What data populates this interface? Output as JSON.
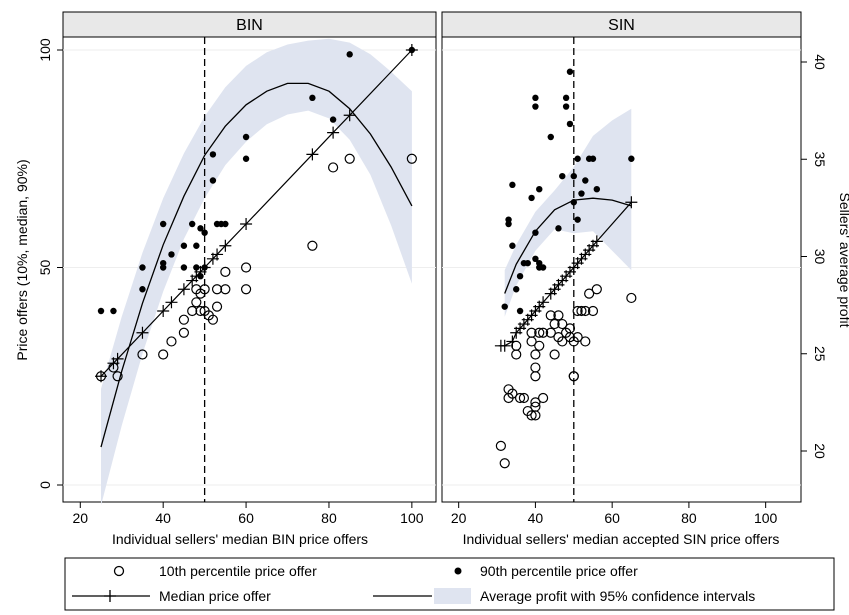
{
  "chart_data": {
    "type": "scatter",
    "left_axis_label": "Price offers (10%, median, 90%)",
    "right_axis_label": "Sellers' average profit",
    "left_ticks": [
      0,
      50,
      100
    ],
    "right_ticks": [
      20,
      25,
      30,
      35,
      40
    ],
    "panels": [
      {
        "title": "BIN",
        "xlabel": "Individual sellers' median BIN price offers",
        "xticks": [
          20,
          40,
          60,
          80,
          100
        ],
        "xlim": [
          18,
          101
        ],
        "ref_line_x": 50,
        "p10": [
          [
            25,
            25
          ],
          [
            28,
            27
          ],
          [
            29,
            25
          ],
          [
            35,
            30
          ],
          [
            40,
            30
          ],
          [
            42,
            33
          ],
          [
            45,
            35
          ],
          [
            45,
            38
          ],
          [
            47,
            40
          ],
          [
            48,
            42
          ],
          [
            48,
            45
          ],
          [
            49,
            40
          ],
          [
            49,
            44
          ],
          [
            50,
            45
          ],
          [
            50,
            40
          ],
          [
            51,
            39
          ],
          [
            52,
            38
          ],
          [
            53,
            41
          ],
          [
            53,
            45
          ],
          [
            55,
            49
          ],
          [
            55,
            45
          ],
          [
            60,
            50
          ],
          [
            60,
            45
          ],
          [
            76,
            55
          ],
          [
            81,
            73
          ],
          [
            85,
            75
          ],
          [
            100,
            75
          ]
        ],
        "p90": [
          [
            25,
            40
          ],
          [
            28,
            40
          ],
          [
            35,
            45
          ],
          [
            35,
            50
          ],
          [
            40,
            60
          ],
          [
            40,
            51
          ],
          [
            40,
            50
          ],
          [
            42,
            53
          ],
          [
            45,
            55
          ],
          [
            45,
            50
          ],
          [
            47,
            60
          ],
          [
            48,
            55
          ],
          [
            48,
            50
          ],
          [
            49,
            59
          ],
          [
            49,
            48
          ],
          [
            50,
            58
          ],
          [
            50,
            50
          ],
          [
            52,
            76
          ],
          [
            52,
            70
          ],
          [
            53,
            60
          ],
          [
            54,
            60
          ],
          [
            55,
            60
          ],
          [
            60,
            80
          ],
          [
            60,
            75
          ],
          [
            76,
            89
          ],
          [
            81,
            84
          ],
          [
            85,
            99
          ],
          [
            100,
            100
          ]
        ],
        "median": [
          [
            25,
            25
          ],
          [
            28,
            28
          ],
          [
            29,
            29
          ],
          [
            35,
            35
          ],
          [
            40,
            40
          ],
          [
            42,
            42
          ],
          [
            45,
            45
          ],
          [
            47,
            47
          ],
          [
            48,
            48
          ],
          [
            49,
            49
          ],
          [
            50,
            50
          ],
          [
            52,
            52
          ],
          [
            53,
            53
          ],
          [
            55,
            55
          ],
          [
            60,
            60
          ],
          [
            76,
            76
          ],
          [
            81,
            81
          ],
          [
            85,
            85
          ],
          [
            100,
            100
          ]
        ],
        "profit": {
          "ylim": [
            17.2,
            42
          ],
          "x": [
            25,
            30,
            35,
            40,
            45,
            50,
            55,
            60,
            65,
            70,
            75,
            80,
            85,
            90,
            95,
            100
          ],
          "fit": [
            20.2,
            24.1,
            27.6,
            30.6,
            33.1,
            35.2,
            36.7,
            37.8,
            38.5,
            38.9,
            38.9,
            38.5,
            37.6,
            36.3,
            34.6,
            32.6
          ],
          "lo": [
            17.2,
            21.3,
            25.0,
            28.2,
            30.9,
            33.0,
            34.7,
            35.9,
            36.8,
            37.3,
            37.5,
            37.1,
            36.0,
            34.2,
            31.6,
            28.6
          ],
          "hi": [
            23.2,
            26.9,
            30.2,
            33.0,
            35.3,
            37.2,
            38.7,
            39.8,
            40.5,
            40.9,
            41.1,
            41.2,
            41.0,
            40.4,
            39.5,
            38.5
          ]
        }
      },
      {
        "title": "SIN",
        "xlabel": "Individual sellers' median accepted SIN price offers",
        "xticks": [
          20,
          40,
          60,
          80,
          100
        ],
        "xlim": [
          18,
          104
        ],
        "ref_line_x": 50,
        "p10": [
          [
            31,
            9
          ],
          [
            32,
            5
          ],
          [
            33,
            22
          ],
          [
            33,
            20
          ],
          [
            34,
            21
          ],
          [
            35,
            30
          ],
          [
            35,
            32
          ],
          [
            36,
            20
          ],
          [
            37,
            20
          ],
          [
            38,
            17
          ],
          [
            39,
            16
          ],
          [
            39,
            35
          ],
          [
            39,
            33
          ],
          [
            40,
            16
          ],
          [
            40,
            18
          ],
          [
            40,
            19
          ],
          [
            40,
            25
          ],
          [
            40,
            27
          ],
          [
            40,
            30
          ],
          [
            41,
            35
          ],
          [
            41,
            32
          ],
          [
            42,
            20
          ],
          [
            42,
            35
          ],
          [
            44,
            39
          ],
          [
            44,
            35
          ],
          [
            45,
            30
          ],
          [
            45,
            37
          ],
          [
            46,
            39
          ],
          [
            46,
            34
          ],
          [
            47,
            37
          ],
          [
            47,
            33
          ],
          [
            48,
            35
          ],
          [
            49,
            36
          ],
          [
            49,
            34
          ],
          [
            50,
            25
          ],
          [
            50,
            25
          ],
          [
            50,
            33
          ],
          [
            51,
            34
          ],
          [
            51,
            40
          ],
          [
            52,
            40
          ],
          [
            53,
            40
          ],
          [
            53,
            33
          ],
          [
            54,
            44
          ],
          [
            55,
            40
          ],
          [
            56,
            45
          ],
          [
            65,
            43
          ]
        ],
        "p90": [
          [
            32,
            41
          ],
          [
            33,
            61
          ],
          [
            34,
            69
          ],
          [
            33,
            60
          ],
          [
            34,
            55
          ],
          [
            35,
            45
          ],
          [
            36,
            48
          ],
          [
            36,
            40
          ],
          [
            37,
            51
          ],
          [
            38,
            51
          ],
          [
            39,
            66
          ],
          [
            40,
            52
          ],
          [
            40,
            58
          ],
          [
            40,
            89
          ],
          [
            40,
            87
          ],
          [
            41,
            51
          ],
          [
            41,
            50
          ],
          [
            41,
            68
          ],
          [
            42,
            50
          ],
          [
            44,
            80
          ],
          [
            46,
            59
          ],
          [
            47,
            71
          ],
          [
            48,
            89
          ],
          [
            48,
            87
          ],
          [
            49,
            83
          ],
          [
            49,
            95
          ],
          [
            50,
            71
          ],
          [
            50,
            65
          ],
          [
            51,
            61
          ],
          [
            51,
            75
          ],
          [
            52,
            67
          ],
          [
            53,
            70
          ],
          [
            54,
            75
          ],
          [
            55,
            75
          ],
          [
            56,
            68
          ],
          [
            65,
            75
          ]
        ],
        "median": [
          [
            31,
            32
          ],
          [
            32,
            32
          ],
          [
            34,
            33
          ],
          [
            35,
            35
          ],
          [
            36,
            36
          ],
          [
            37,
            37
          ],
          [
            38,
            38
          ],
          [
            39,
            39
          ],
          [
            40,
            40
          ],
          [
            41,
            41
          ],
          [
            42,
            42
          ],
          [
            44,
            44
          ],
          [
            45,
            45
          ],
          [
            46,
            46
          ],
          [
            47,
            47
          ],
          [
            48,
            48
          ],
          [
            49,
            49
          ],
          [
            50,
            50
          ],
          [
            51,
            51
          ],
          [
            52,
            52
          ],
          [
            53,
            53
          ],
          [
            54,
            54
          ],
          [
            55,
            55
          ],
          [
            56,
            56
          ],
          [
            65,
            65
          ]
        ],
        "profit": {
          "ylim": [
            17.2,
            42
          ],
          "x": [
            32,
            35,
            40,
            45,
            50,
            55,
            60,
            65
          ],
          "fit": [
            28.1,
            29.6,
            31.3,
            32.4,
            32.9,
            33.0,
            32.9,
            32.6
          ],
          "lo": [
            26.9,
            28.5,
            30.3,
            31.4,
            31.2,
            31.3,
            30.3,
            29.3
          ],
          "hi": [
            29.3,
            30.6,
            32.3,
            33.4,
            34.6,
            36.2,
            37.0,
            37.6
          ]
        }
      }
    ],
    "legend": {
      "p10": "10th percentile price offer",
      "p90": "90th percentile price offer",
      "median": "Median price offer",
      "profit": "Average profit with 95% confidence intervals"
    },
    "colors": {
      "band": "#dfe4f0",
      "line": "#000000",
      "background": "#ffffff"
    }
  }
}
